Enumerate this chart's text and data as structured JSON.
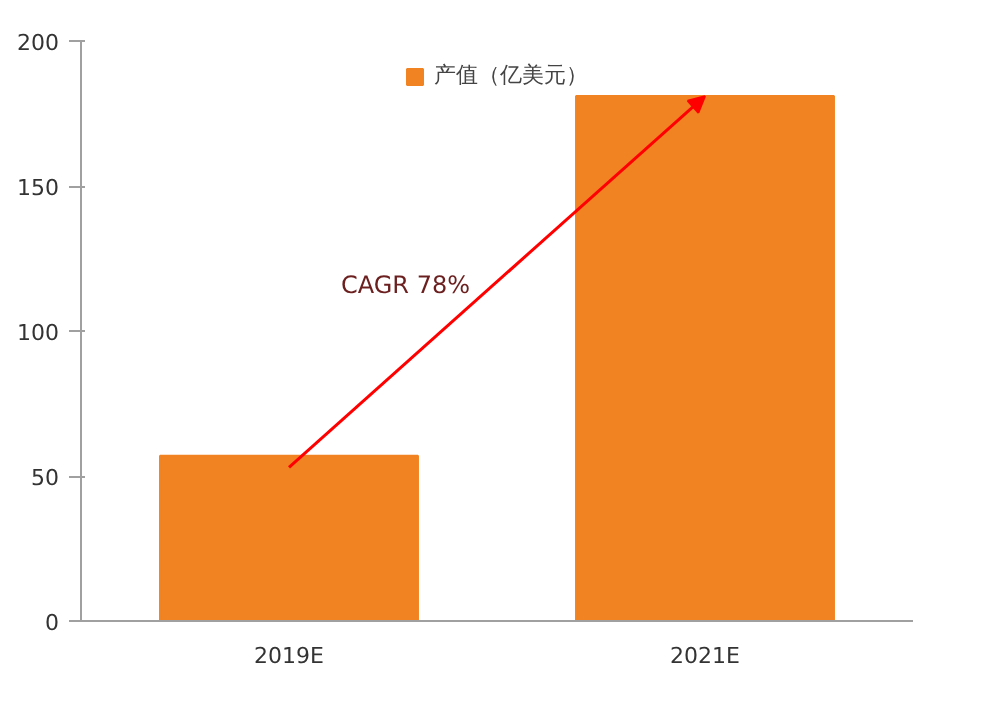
{
  "chart_data": {
    "type": "bar",
    "categories": [
      "2019E",
      "2021E"
    ],
    "series": [
      {
        "name": "产值（亿美元）",
        "color": "#f28322",
        "values": [
          57,
          181
        ]
      }
    ],
    "ylim": [
      0,
      200
    ],
    "yticks": [
      0,
      50,
      100,
      150,
      200
    ],
    "annotations": [
      "CAGR 78%"
    ],
    "grid": false,
    "legend": "top"
  }
}
